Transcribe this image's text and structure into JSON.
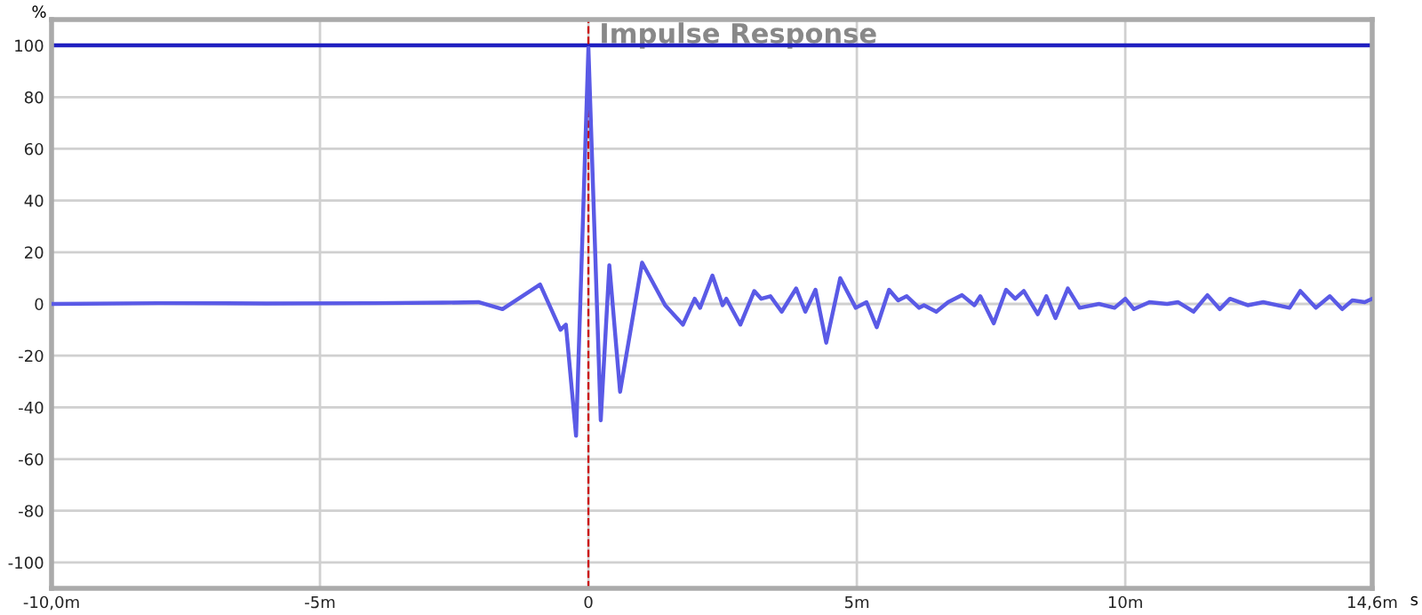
{
  "chart_data": {
    "type": "line",
    "title": "Impulse Response",
    "xlabel": "s",
    "ylabel": "%",
    "xlim": [
      -10,
      14.6
    ],
    "ylim": [
      -110,
      110
    ],
    "xticks": [
      {
        "value": -10,
        "label": "-10,0m"
      },
      {
        "value": -5,
        "label": "-5m"
      },
      0,
      {
        "value": 5,
        "label": "5m"
      },
      {
        "value": 10,
        "label": "10m"
      },
      {
        "value": 14.6,
        "label": "14,6m"
      }
    ],
    "yticks": [
      -100,
      -80,
      -60,
      -40,
      -20,
      0,
      20,
      40,
      60,
      80,
      100
    ],
    "grid": true,
    "legend": false,
    "marker": "none",
    "line_style": "solid",
    "ref_lines": [
      {
        "axis": "y",
        "value": 100,
        "color": "#2020c0",
        "line_style": "solid"
      },
      {
        "axis": "x",
        "value": 0,
        "color": "#cc0000",
        "line_style": "dashed"
      }
    ],
    "series": [
      {
        "color": "#5a5ae6",
        "x": [
          -10,
          -8,
          -6,
          -4,
          -2.7,
          -2.05,
          -1.6,
          -0.9,
          -0.52,
          -0.42,
          -0.23,
          0,
          0.23,
          0.39,
          0.59,
          1.0,
          1.43,
          1.76,
          1.98,
          2.08,
          2.31,
          2.5,
          2.57,
          2.83,
          3.09,
          3.22,
          3.39,
          3.6,
          3.87,
          4.04,
          4.23,
          4.43,
          4.69,
          4.98,
          5.18,
          5.37,
          5.6,
          5.77,
          5.93,
          6.16,
          6.25,
          6.48,
          6.7,
          6.96,
          7.19,
          7.3,
          7.55,
          7.78,
          7.95,
          8.11,
          8.37,
          8.53,
          8.7,
          8.93,
          9.15,
          9.51,
          9.8,
          10.0,
          10.16,
          10.45,
          10.78,
          10.98,
          11.27,
          11.53,
          11.76,
          11.95,
          12.28,
          12.57,
          12.83,
          13.06,
          13.26,
          13.55,
          13.81,
          14.04,
          14.23,
          14.46,
          14.6
        ],
        "values": [
          0,
          0.3,
          0.2,
          0.3,
          0.5,
          0.7,
          -2,
          7.5,
          -10,
          -8,
          -51,
          99,
          -45,
          15,
          -34,
          16,
          -0.5,
          -8,
          2,
          -1.5,
          11,
          -0.5,
          2,
          -8,
          5,
          2,
          3,
          -3,
          6,
          -3,
          5.5,
          -15,
          10,
          -1.5,
          0.7,
          -9,
          5.5,
          1.4,
          3,
          -1.5,
          -0.5,
          -3,
          0.7,
          3.4,
          -0.5,
          3,
          -7.5,
          5.5,
          2,
          5,
          -4,
          3,
          -5.5,
          6,
          -1.5,
          0,
          -1.5,
          2,
          -2,
          0.7,
          0,
          0.7,
          -3,
          3.4,
          -2,
          2,
          -0.5,
          0.7,
          -0.5,
          -1.5,
          5,
          -1.5,
          3,
          -2,
          1.4,
          0.7,
          2
        ]
      }
    ]
  }
}
